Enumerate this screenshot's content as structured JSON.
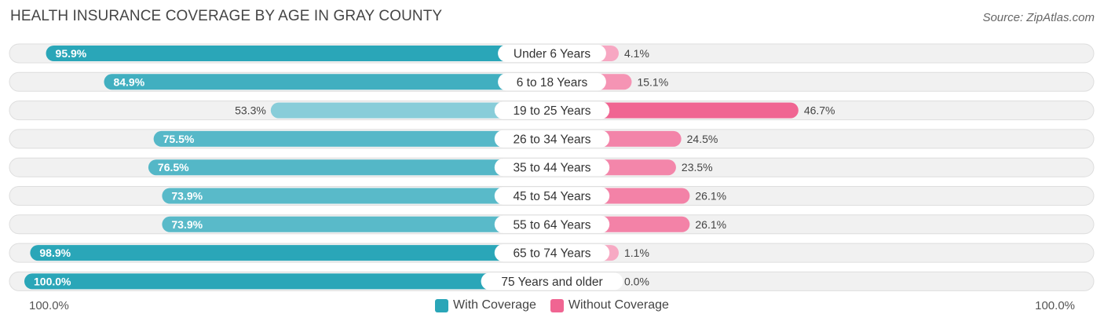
{
  "title": "HEALTH INSURANCE COVERAGE BY AGE IN GRAY COUNTY",
  "source": "Source: ZipAtlas.com",
  "colors": {
    "with_strong": "#2aa6b8",
    "with_light": "#8fd0dc",
    "without_strong": "#f06592",
    "without_light": "#f7a9c3",
    "track": "#f1f1f1",
    "track_border": "#dedede"
  },
  "chart_data": {
    "type": "bar",
    "orientation": "horizontal-diverging",
    "categories": [
      "Under 6 Years",
      "6 to 18 Years",
      "19 to 25 Years",
      "26 to 34 Years",
      "35 to 44 Years",
      "45 to 54 Years",
      "55 to 64 Years",
      "65 to 74 Years",
      "75 Years and older"
    ],
    "series": [
      {
        "name": "With Coverage",
        "values": [
          95.9,
          84.9,
          53.3,
          75.5,
          76.5,
          73.9,
          73.9,
          98.9,
          100.0
        ],
        "labels": [
          "95.9%",
          "84.9%",
          "53.3%",
          "75.5%",
          "76.5%",
          "73.9%",
          "73.9%",
          "98.9%",
          "100.0%"
        ]
      },
      {
        "name": "Without Coverage",
        "values": [
          4.1,
          15.1,
          46.7,
          24.5,
          23.5,
          26.1,
          26.1,
          1.1,
          0.0
        ],
        "labels": [
          "4.1%",
          "15.1%",
          "46.7%",
          "24.5%",
          "23.5%",
          "26.1%",
          "26.1%",
          "1.1%",
          "0.0%"
        ]
      }
    ],
    "xlim": [
      -100,
      100
    ],
    "axis_left_label": "100.0%",
    "axis_right_label": "100.0%",
    "legend_position": "bottom-center"
  }
}
